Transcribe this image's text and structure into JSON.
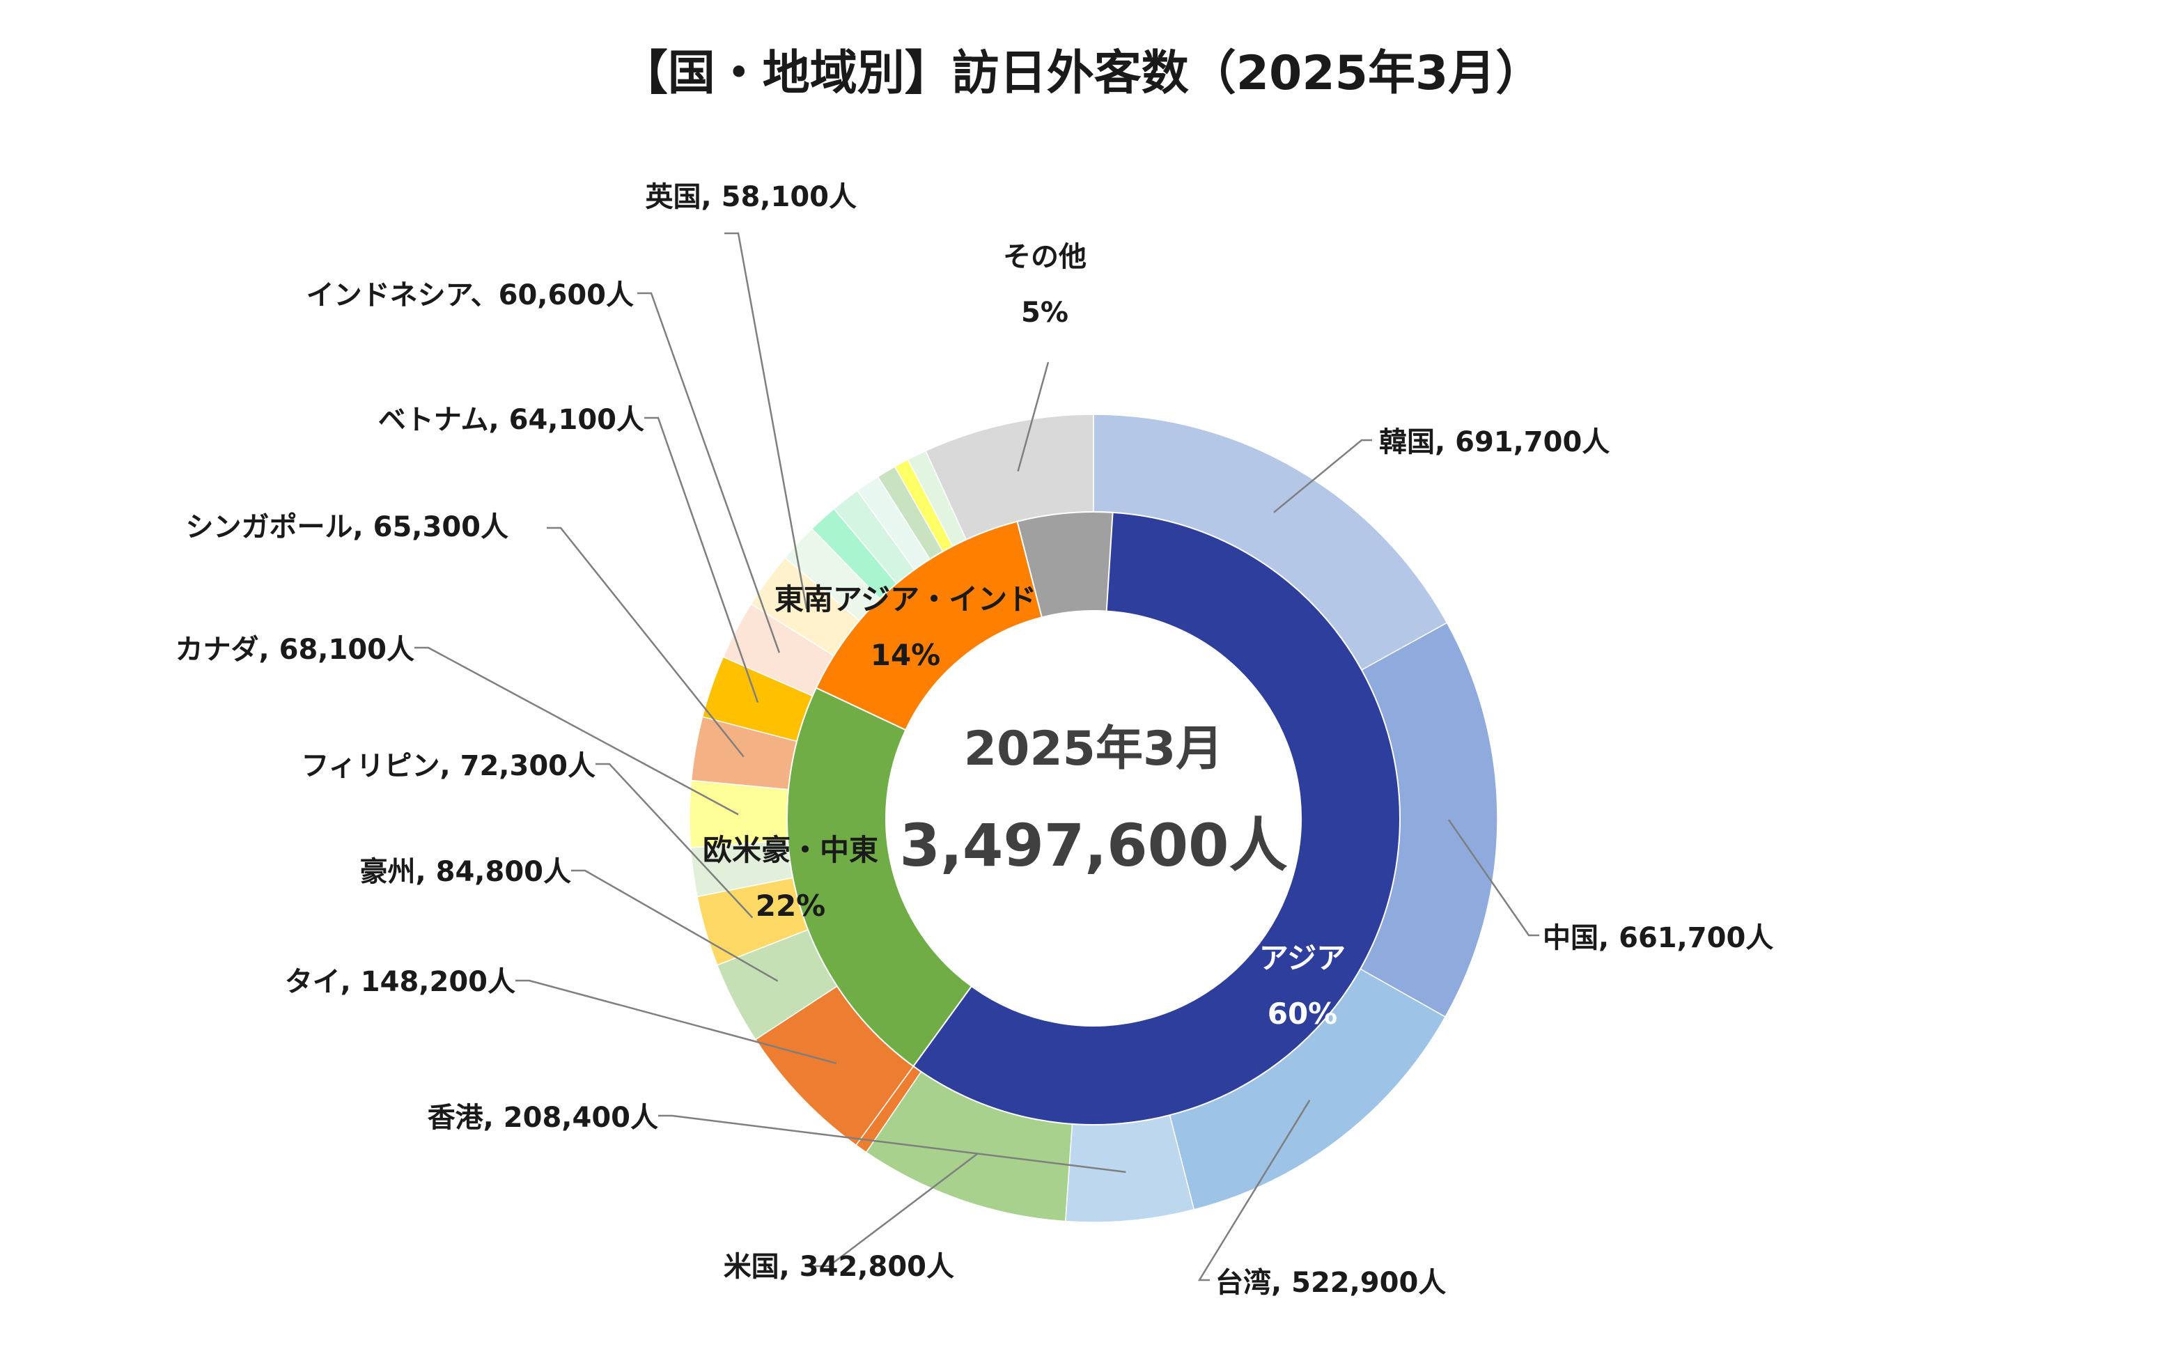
{
  "chart_data": {
    "type": "pie",
    "subtype": "nested-donut",
    "title": "【国・地域別】訪日外客数（2025年3月）",
    "center": {
      "label": "2025年3月",
      "total": "3,497,600人"
    },
    "inner_ring": [
      {
        "label": "アジア",
        "percent_label": "60%",
        "share": 0.6,
        "color": "#2E3E9C"
      },
      {
        "label": "欧米豪・中東",
        "percent_label": "22%",
        "share": 0.22,
        "color": "#70AD47"
      },
      {
        "label": "東南アジア・インド",
        "percent_label": "14%",
        "share": 0.14,
        "color": "#FF7F00"
      },
      {
        "label": "その他",
        "percent_label": "5%",
        "share": 0.05,
        "color": "#A0A0A0"
      }
    ],
    "outer_ring": [
      {
        "label": "韓国, 691,700人",
        "value": 691700,
        "color": "#B4C7E7",
        "labeled": true
      },
      {
        "label": "中国, 661,700人",
        "value": 661700,
        "color": "#8FAADC",
        "labeled": true
      },
      {
        "label": "台湾, 522,900人",
        "value": 522900,
        "color": "#9DC3E6",
        "labeled": true
      },
      {
        "label": "香港, 208,400人",
        "value": 208400,
        "color": "#BDD7EE",
        "labeled": true
      },
      {
        "label": "米国, 342,800人",
        "value": 342800,
        "color": "#A9D18E",
        "labeled": true
      },
      {
        "label": "",
        "value": 20000,
        "color": "#ED7D31",
        "labeled": false
      },
      {
        "label": "",
        "value": 0,
        "color": "#000000",
        "labeled": false
      },
      {
        "label": "",
        "value": 0,
        "color": "#000000",
        "labeled": false
      }
    ],
    "outer_ring_west": [
      {
        "label": "タイ, 148,200人",
        "value": 148200,
        "color": "#ED7D31",
        "labeled": true
      },
      {
        "label": "豪州, 84,800人",
        "value": 84800,
        "color": "#C5E0B4",
        "labeled": true
      },
      {
        "label": "フィリピン, 72,300人",
        "value": 72300,
        "color": "#FFD966",
        "labeled": true
      },
      {
        "label": "",
        "value": 50000,
        "color": "#E2EFDA",
        "labeled": false
      },
      {
        "label": "カナダ, 68,100人",
        "value": 68100,
        "color": "#FFFF99",
        "labeled": true
      },
      {
        "label": "シンガポール, 65,300人",
        "value": 65300,
        "color": "#F4B183",
        "labeled": true
      },
      {
        "label": "ベトナム, 64,100人",
        "value": 64100,
        "color": "#FFC000",
        "labeled": true
      },
      {
        "label": "インドネシア、60,600人",
        "value": 60600,
        "color": "#FCE4D6",
        "labeled": true
      },
      {
        "label": "英国, 58,100人",
        "value": 58100,
        "color": "#FFF2CC",
        "labeled": true
      },
      {
        "label": "",
        "value": 40000,
        "color": "#EAF7EA",
        "labeled": false
      },
      {
        "label": "",
        "value": 30000,
        "color": "#A9F5D0",
        "labeled": false
      },
      {
        "label": "",
        "value": 30000,
        "color": "#D5F5E3",
        "labeled": false
      },
      {
        "label": "",
        "value": 25000,
        "color": "#E8F8F0",
        "labeled": false
      },
      {
        "label": "",
        "value": 20000,
        "color": "#C9E3C0",
        "labeled": false
      },
      {
        "label": "",
        "value": 15000,
        "color": "#FFFF66",
        "labeled": false
      },
      {
        "label": "",
        "value": 20000,
        "color": "#E2F5E0",
        "labeled": false
      },
      {
        "label": "その他",
        "value": 175000,
        "color": "#D9D9D9",
        "labeled": false
      }
    ],
    "other_label": {
      "label": "その他",
      "percent_label": "5%"
    }
  }
}
